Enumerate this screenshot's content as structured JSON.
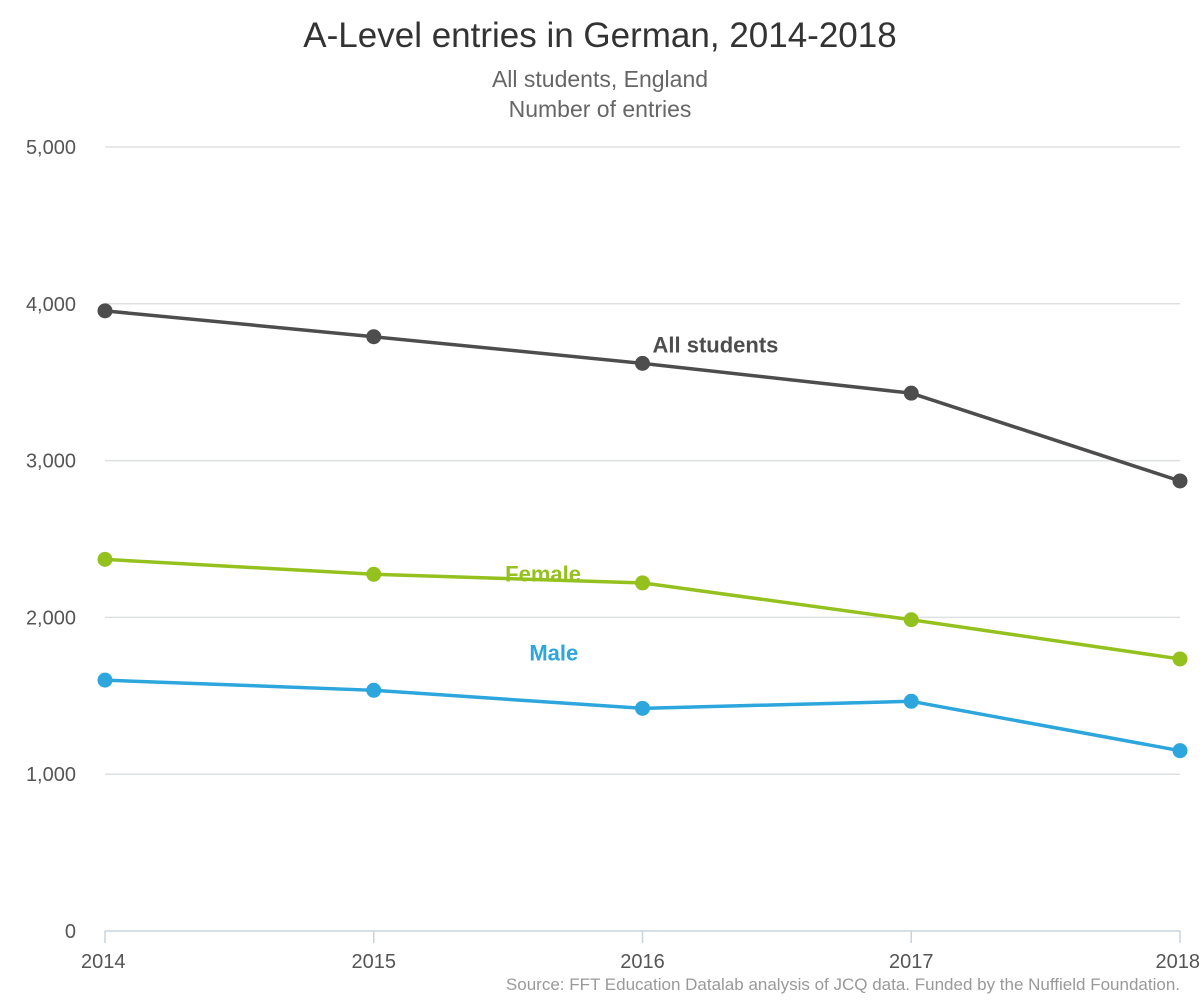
{
  "chart_data": {
    "type": "line",
    "title": "A-Level entries in German, 2014-2018",
    "subtitle": [
      "All students, England",
      "Number of entries"
    ],
    "xlabel": "",
    "ylabel": "",
    "x": [
      "2014",
      "2015",
      "2016",
      "2017",
      "2018"
    ],
    "ylim": [
      0,
      5000
    ],
    "yticks": [
      0,
      1000,
      2000,
      3000,
      4000,
      5000
    ],
    "ytick_labels": [
      "0",
      "1,000",
      "2,000",
      "3,000",
      "4,000",
      "5,000"
    ],
    "grid": true,
    "legend": "none",
    "series": [
      {
        "name": "All students",
        "color": "#4d4d4d",
        "values": [
          3955,
          3790,
          3620,
          3430,
          2870
        ]
      },
      {
        "name": "Female",
        "color": "#95c11f",
        "values": [
          2370,
          2275,
          2220,
          1985,
          1735
        ]
      },
      {
        "name": "Male",
        "color": "#2ca6dc",
        "values": [
          1600,
          1535,
          1420,
          1465,
          1150
        ]
      }
    ],
    "source": "Source: FFT Education Datalab analysis of JCQ data. Funded by the Nuffield Foundation."
  }
}
